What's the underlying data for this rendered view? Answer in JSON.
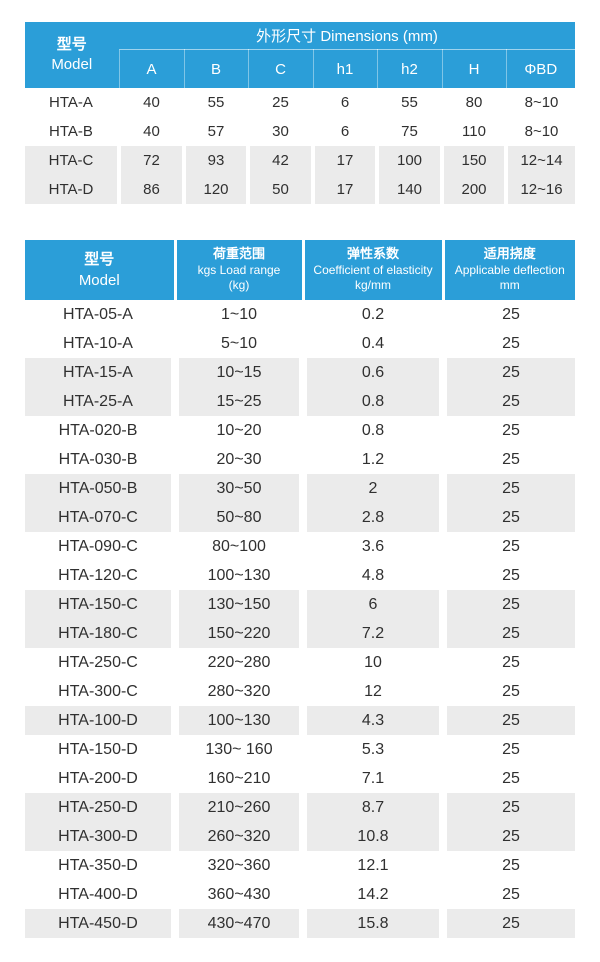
{
  "colors": {
    "header_blue": "#2B9ED8",
    "shaded_row_gray": "#EBEBEB",
    "body_text": "#303030",
    "header_text": "#FFFFFF"
  },
  "dimensions_table": {
    "model_header": {
      "zh": "型号",
      "en": "Model"
    },
    "dimensions_header": "外形尺寸 Dimensions (mm)",
    "columns": [
      "A",
      "B",
      "C",
      "h1",
      "h2",
      "H",
      "ΦBD"
    ],
    "rows": [
      {
        "model": "HTA-A",
        "values": [
          "40",
          "55",
          "25",
          "6",
          "55",
          "80",
          "8~10"
        ],
        "shaded": false
      },
      {
        "model": "HTA-B",
        "values": [
          "40",
          "57",
          "30",
          "6",
          "75",
          "110",
          "8~10"
        ],
        "shaded": false
      },
      {
        "model": "HTA-C",
        "values": [
          "72",
          "93",
          "42",
          "17",
          "100",
          "150",
          "12~14"
        ],
        "shaded": true
      },
      {
        "model": "HTA-D",
        "values": [
          "86",
          "120",
          "50",
          "17",
          "140",
          "200",
          "12~16"
        ],
        "shaded": true
      }
    ]
  },
  "spec_table": {
    "headers": {
      "model": {
        "zh": "型号",
        "en": "Model"
      },
      "load_range": {
        "zh": "荷重范围",
        "en": "kgs Load range",
        "unit": "(kg)"
      },
      "coefficient": {
        "zh": "弹性系数",
        "en": "Coefficient of elasticity",
        "unit": "kg/mm"
      },
      "deflection": {
        "zh": "适用挠度",
        "en": "Applicable deflection",
        "unit": "mm"
      }
    },
    "rows": [
      {
        "model": "HTA-05-A",
        "load_range": "1~10",
        "coefficient": "0.2",
        "deflection": "25",
        "shaded": false
      },
      {
        "model": "HTA-10-A",
        "load_range": "5~10",
        "coefficient": "0.4",
        "deflection": "25",
        "shaded": false
      },
      {
        "model": "HTA-15-A",
        "load_range": "10~15",
        "coefficient": "0.6",
        "deflection": "25",
        "shaded": true
      },
      {
        "model": "HTA-25-A",
        "load_range": "15~25",
        "coefficient": "0.8",
        "deflection": "25",
        "shaded": true
      },
      {
        "model": "HTA-020-B",
        "load_range": "10~20",
        "coefficient": "0.8",
        "deflection": "25",
        "shaded": false
      },
      {
        "model": "HTA-030-B",
        "load_range": "20~30",
        "coefficient": "1.2",
        "deflection": "25",
        "shaded": false
      },
      {
        "model": "HTA-050-B",
        "load_range": "30~50",
        "coefficient": "2",
        "deflection": "25",
        "shaded": true
      },
      {
        "model": "HTA-070-C",
        "load_range": "50~80",
        "coefficient": "2.8",
        "deflection": "25",
        "shaded": true
      },
      {
        "model": "HTA-090-C",
        "load_range": "80~100",
        "coefficient": "3.6",
        "deflection": "25",
        "shaded": false
      },
      {
        "model": "HTA-120-C",
        "load_range": "100~130",
        "coefficient": "4.8",
        "deflection": "25",
        "shaded": false
      },
      {
        "model": "HTA-150-C",
        "load_range": "130~150",
        "coefficient": "6",
        "deflection": "25",
        "shaded": true
      },
      {
        "model": "HTA-180-C",
        "load_range": "150~220",
        "coefficient": "7.2",
        "deflection": "25",
        "shaded": true
      },
      {
        "model": "HTA-250-C",
        "load_range": "220~280",
        "coefficient": "10",
        "deflection": "25",
        "shaded": false
      },
      {
        "model": "HTA-300-C",
        "load_range": "280~320",
        "coefficient": "12",
        "deflection": "25",
        "shaded": false
      },
      {
        "model": "HTA-100-D",
        "load_range": "100~130",
        "coefficient": "4.3",
        "deflection": "25",
        "shaded": true
      },
      {
        "model": "HTA-150-D",
        "load_range": "130~ 160",
        "coefficient": "5.3",
        "deflection": "25",
        "shaded": false
      },
      {
        "model": "HTA-200-D",
        "load_range": "160~210",
        "coefficient": "7.1",
        "deflection": "25",
        "shaded": false
      },
      {
        "model": "HTA-250-D",
        "load_range": "210~260",
        "coefficient": "8.7",
        "deflection": "25",
        "shaded": true
      },
      {
        "model": "HTA-300-D",
        "load_range": "260~320",
        "coefficient": "10.8",
        "deflection": "25",
        "shaded": true
      },
      {
        "model": "HTA-350-D",
        "load_range": "320~360",
        "coefficient": "12.1",
        "deflection": "25",
        "shaded": false
      },
      {
        "model": "HTA-400-D",
        "load_range": "360~430",
        "coefficient": "14.2",
        "deflection": "25",
        "shaded": false
      },
      {
        "model": "HTA-450-D",
        "load_range": "430~470",
        "coefficient": "15.8",
        "deflection": "25",
        "shaded": true
      }
    ]
  }
}
